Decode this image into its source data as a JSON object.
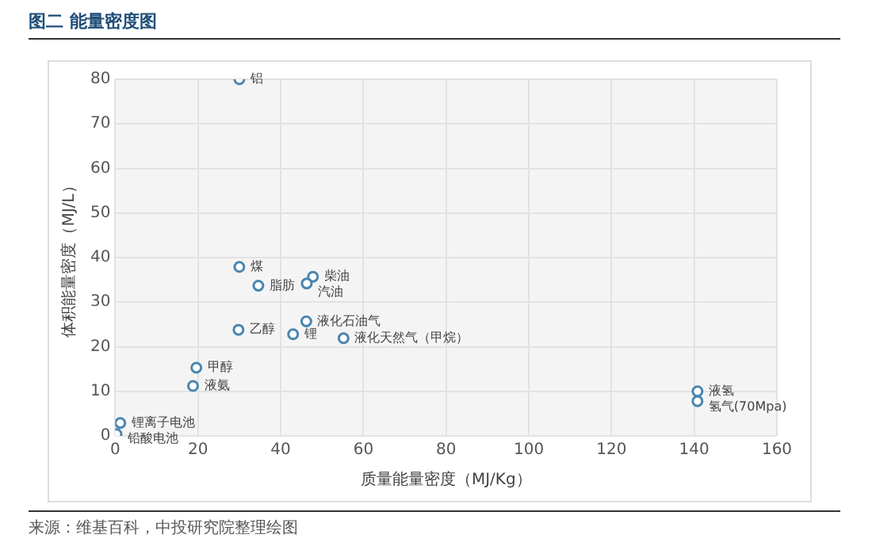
{
  "chart_data": {
    "type": "scatter",
    "title": "图二 能量密度图",
    "xlabel": "质量能量密度（MJ/Kg）",
    "ylabel": "体积能量密度（MJ/L）",
    "x": [
      30,
      30,
      34.6,
      47.8,
      46.3,
      29.8,
      46.2,
      43,
      55.2,
      19.6,
      18.8,
      1.2,
      0.3,
      140.8,
      140.8
    ],
    "series": [
      {
        "color": "#4a86b0",
        "values": [
          80,
          37.9,
          33.7,
          35.7,
          34.2,
          23.8,
          25.7,
          22.8,
          21.9,
          15.3,
          11.2,
          2.9,
          0.4,
          10,
          7.8
        ]
      }
    ],
    "xlim": [
      0,
      160
    ],
    "xticks": [
      0,
      20,
      40,
      60,
      80,
      100,
      120,
      140,
      160
    ],
    "ylim": [
      0,
      80
    ],
    "yticks": [
      0,
      10,
      20,
      30,
      40,
      50,
      60,
      70,
      80
    ],
    "grid": true,
    "marker": "circle",
    "legend": false,
    "annotations": [
      {
        "text": "铝",
        "x": 30,
        "y": 80
      },
      {
        "text": "煤",
        "x": 30,
        "y": 37.9
      },
      {
        "text": "脂肪",
        "x": 34.6,
        "y": 33.7
      },
      {
        "text": "柴油",
        "x": 47.8,
        "y": 35.7
      },
      {
        "text": "汽油",
        "x": 46.3,
        "y": 34.2
      },
      {
        "text": "乙醇",
        "x": 29.8,
        "y": 23.8
      },
      {
        "text": "液化石油气",
        "x": 46.2,
        "y": 25.7
      },
      {
        "text": "锂",
        "x": 43,
        "y": 22.8
      },
      {
        "text": "液化天然气（甲烷）",
        "x": 55.2,
        "y": 21.9
      },
      {
        "text": "甲醇",
        "x": 19.6,
        "y": 15.3
      },
      {
        "text": "液氨",
        "x": 18.8,
        "y": 11.2
      },
      {
        "text": "锂离子电池",
        "x": 1.2,
        "y": 2.9
      },
      {
        "text": "铅酸电池",
        "x": 0.3,
        "y": 0.4
      },
      {
        "text": "液氢",
        "x": 140.8,
        "y": 10
      },
      {
        "text": "氢气(70Mpa)",
        "x": 140.8,
        "y": 7.8
      },
      "来源：维基百科，中投研究院整理绘图"
    ]
  }
}
